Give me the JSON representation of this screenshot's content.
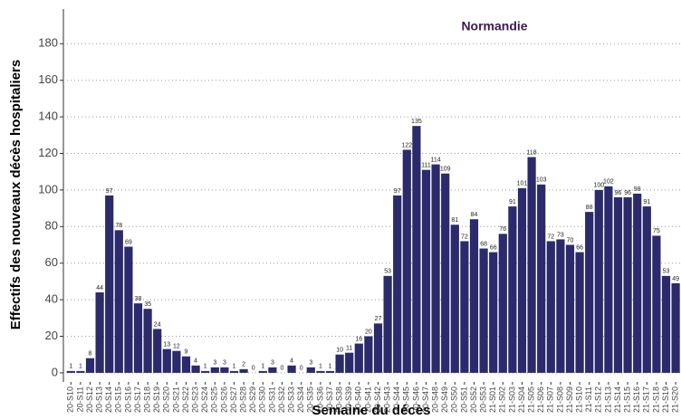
{
  "chart_data": {
    "type": "bar",
    "title": "Normandie",
    "x_label": "Semaine du décès",
    "y_label": "Effectifs des nouveaux décès hospitaliers",
    "categories": [
      "20-S10",
      "20-S11",
      "20-S12",
      "20-S13",
      "20-S14",
      "20-S15",
      "20-S16",
      "20-S17",
      "20-S18",
      "20-S19",
      "20-S20",
      "20-S21",
      "20-S22",
      "20-S23",
      "20-S24",
      "20-S25",
      "20-S26",
      "20-S27",
      "20-S28",
      "20-S29",
      "20-S30",
      "20-S31",
      "20-S32",
      "20-S33",
      "20-S34",
      "20-S35",
      "20-S36",
      "20-S37",
      "20-S38",
      "20-S39",
      "20-S40",
      "20-S41",
      "20-S42",
      "20-S43",
      "20-S44",
      "20-S45",
      "20-S46",
      "20-S47",
      "20-S48",
      "20-S49",
      "20-S50",
      "20-S51",
      "20-S52",
      "20-S53",
      "21-S01",
      "21-S02",
      "21-S03",
      "21-S04",
      "21-S05",
      "21-S06",
      "21-S07",
      "21-S08",
      "21-S09",
      "21-S10",
      "21-S11",
      "21-S12",
      "21-S13",
      "21-S14",
      "21-S15",
      "21-S16",
      "21-S17",
      "21-S18",
      "21-S19",
      "21-S20"
    ],
    "values": [
      1,
      1,
      8,
      44,
      97,
      78,
      69,
      38,
      35,
      24,
      13,
      12,
      9,
      4,
      1,
      3,
      3,
      1,
      2,
      0,
      1,
      3,
      0,
      4,
      0,
      3,
      1,
      1,
      10,
      11,
      16,
      20,
      27,
      53,
      97,
      122,
      135,
      111,
      114,
      109,
      81,
      72,
      84,
      68,
      66,
      76,
      91,
      101,
      118,
      103,
      72,
      73,
      70,
      66,
      88,
      100,
      102,
      96,
      96,
      98,
      91,
      75,
      53,
      49
    ],
    "color": "#2b2a6c",
    "ylim": [
      -5,
      195
    ],
    "yticks": [
      0,
      20,
      40,
      60,
      80,
      100,
      120,
      140,
      160,
      180
    ],
    "grid": true
  }
}
